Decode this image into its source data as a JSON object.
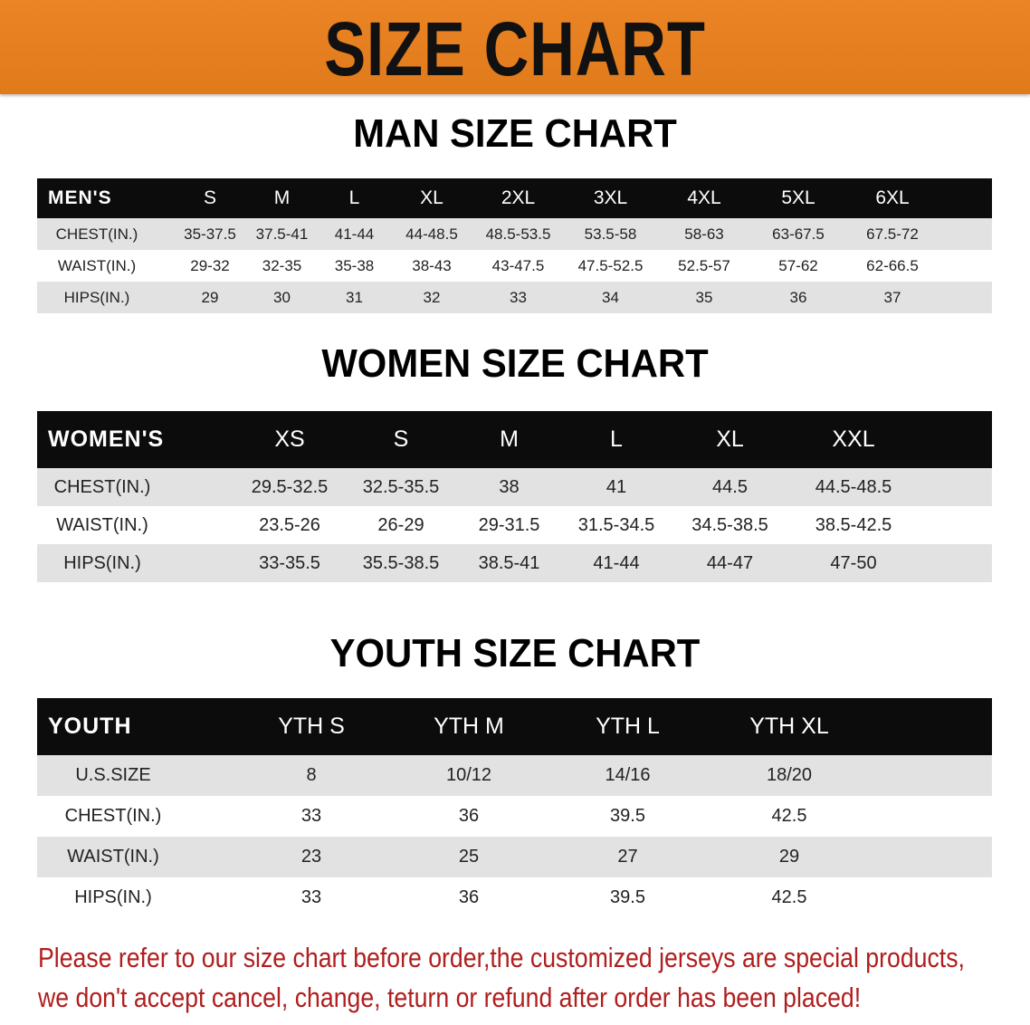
{
  "banner": {
    "title": "SIZE CHART",
    "color": "#e8801e"
  },
  "men": {
    "title": "MAN SIZE CHART",
    "header": [
      "MEN'S",
      "S",
      "M",
      "L",
      "XL",
      "2XL",
      "3XL",
      "4XL",
      "5XL",
      "6XL"
    ],
    "rows": [
      [
        "CHEST(IN.)",
        "35-37.5",
        "37.5-41",
        "41-44",
        "44-48.5",
        "48.5-53.5",
        "53.5-58",
        "58-63",
        "63-67.5",
        "67.5-72"
      ],
      [
        "WAIST(IN.)",
        "29-32",
        "32-35",
        "35-38",
        "38-43",
        "43-47.5",
        "47.5-52.5",
        "52.5-57",
        "57-62",
        "62-66.5"
      ],
      [
        "HIPS(IN.)",
        "29",
        "30",
        "31",
        "32",
        "33",
        "34",
        "35",
        "36",
        "37"
      ]
    ]
  },
  "women": {
    "title": "WOMEN SIZE CHART",
    "header": [
      "WOMEN'S",
      "XS",
      "S",
      "M",
      "L",
      "XL",
      "XXL"
    ],
    "rows": [
      [
        "CHEST(IN.)",
        "29.5-32.5",
        "32.5-35.5",
        "38",
        "41",
        "44.5",
        "44.5-48.5"
      ],
      [
        "WAIST(IN.)",
        "23.5-26",
        "26-29",
        "29-31.5",
        "31.5-34.5",
        "34.5-38.5",
        "38.5-42.5"
      ],
      [
        "HIPS(IN.)",
        "33-35.5",
        "35.5-38.5",
        "38.5-41",
        "41-44",
        "44-47",
        "47-50"
      ]
    ]
  },
  "youth": {
    "title": "YOUTH SIZE CHART",
    "header": [
      "YOUTH",
      "YTH S",
      "YTH M",
      "YTH L",
      "YTH XL"
    ],
    "rows": [
      [
        "U.S.SIZE",
        "8",
        "10/12",
        "14/16",
        "18/20"
      ],
      [
        "CHEST(IN.)",
        "33",
        "36",
        "39.5",
        "42.5"
      ],
      [
        "WAIST(IN.)",
        "23",
        "25",
        "27",
        "29"
      ],
      [
        "HIPS(IN.)",
        "33",
        "36",
        "39.5",
        "42.5"
      ]
    ]
  },
  "notice": {
    "line1": "Please refer to our size chart before order,the customized jerseys are special products,",
    "line2": "we don't accept cancel, change, teturn or refund after order has been placed!",
    "color": "#b01e1e"
  }
}
